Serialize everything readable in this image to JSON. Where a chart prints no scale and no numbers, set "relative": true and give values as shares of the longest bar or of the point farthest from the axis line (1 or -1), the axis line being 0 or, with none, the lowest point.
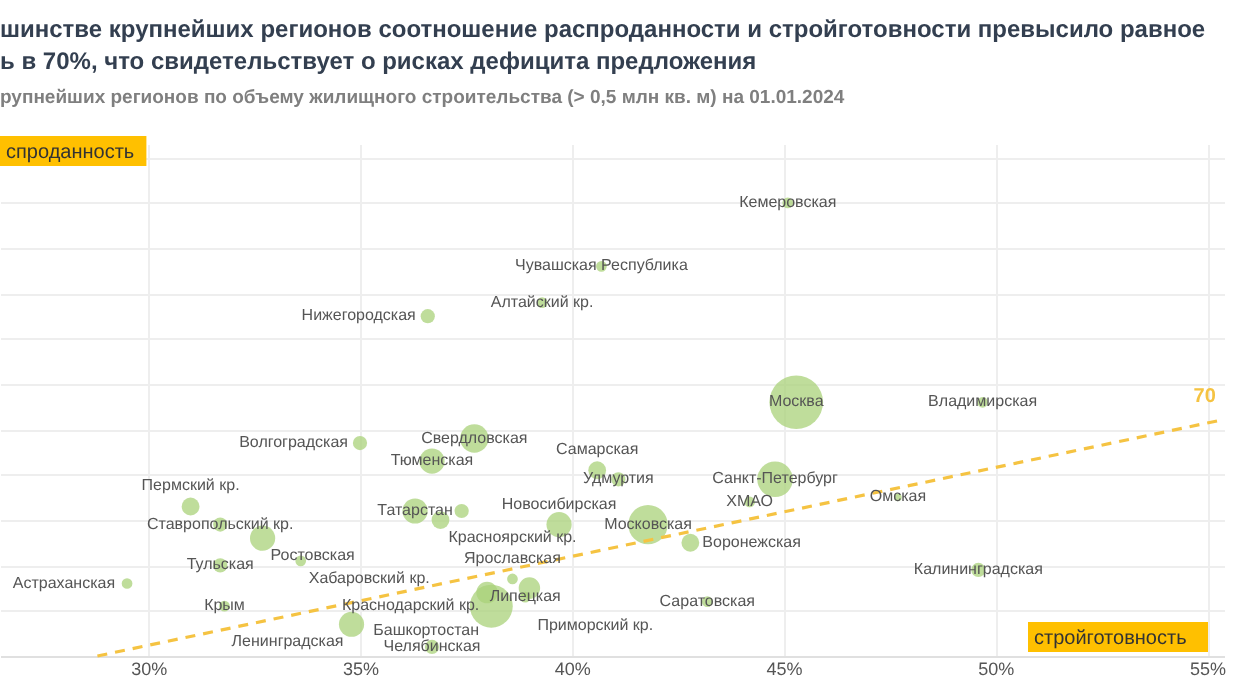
{
  "chart_data": {
    "type": "bubble",
    "title": "шинстве крупнейших регионов соотношение распроданности и стройготовности превысило равное\nь в 70%, что свидетельствует о рисках дефицита предложения",
    "subtitle": "рупнейших регионов по объему жилищного строительства (> 0,5 млн кв. м) на 01.01.2024",
    "xlabel": "стройготовность",
    "ylabel": "спроданность",
    "relative": true,
    "grid": true,
    "xlim": [
      26.5,
      55.4
    ],
    "xticks": [
      {
        "value": 30,
        "label": "30%"
      },
      {
        "value": 35,
        "label": "35%"
      },
      {
        "value": 40,
        "label": "40%"
      },
      {
        "value": 45,
        "label": "45%"
      },
      {
        "value": 50,
        "label": "50%"
      },
      {
        "value": 55,
        "label": "55%"
      }
    ],
    "series": [
      {
        "marker": "circle",
        "color": "#a9d17a",
        "x": [
          45.1,
          40.7,
          36.6,
          39.3,
          45.3,
          49.7,
          35.0,
          37.7,
          36.7,
          40.6,
          41.1,
          44.8,
          44.2,
          47.7,
          41.8,
          42.8,
          49.6,
          43.2,
          31.0,
          31.7,
          32.7,
          31.7,
          33.6,
          29.5,
          31.8,
          34.8,
          36.7,
          36.3,
          37.4,
          36.9,
          39.7,
          38.6,
          39.0,
          38.0,
          38.9,
          38.1
        ],
        "values": [
          1.0,
          0.86,
          0.75,
          0.78,
          0.56,
          0.56,
          0.47,
          0.48,
          0.43,
          0.41,
          0.39,
          0.39,
          0.34,
          0.35,
          0.29,
          0.25,
          0.19,
          0.12,
          0.33,
          0.29,
          0.26,
          0.2,
          0.21,
          0.16,
          0.11,
          0.07,
          0.02,
          0.32,
          0.32,
          0.3,
          0.29,
          0.17,
          0.15,
          0.14,
          0.13,
          0.11
        ],
        "sizes": [
          0.04,
          0.04,
          0.07,
          0.04,
          1,
          0.04,
          0.07,
          0.28,
          0.22,
          0.11,
          0.07,
          0.44,
          0.04,
          0.02,
          0.54,
          0.11,
          0.07,
          0.04,
          0.11,
          0.07,
          0.22,
          0.07,
          0.04,
          0.04,
          0.04,
          0.22,
          0.07,
          0.22,
          0.07,
          0.11,
          0.22,
          0.04,
          0.16,
          0.16,
          0.04,
          0.64
        ]
      },
      {
        "type": "line",
        "name": "70",
        "marker": "none",
        "color": "#f5c342",
        "line_style": "dashed",
        "x": [
          28.8,
          55.3
        ],
        "values": [
          0,
          0.52
        ]
      }
    ],
    "annotations": [
      {
        "text": "Кемеровская",
        "x": 45.1,
        "y": 1.0
      },
      {
        "text": "Чувашская Республика",
        "x": 40.7,
        "y": 0.86
      },
      {
        "text": "Нижегородская",
        "x": 36.6,
        "y": 0.75
      },
      {
        "text": "Алтайский кр.",
        "x": 39.3,
        "y": 0.78
      },
      {
        "text": "Москва",
        "x": 45.3,
        "y": 0.56
      },
      {
        "text": "Владимирская",
        "x": 49.7,
        "y": 0.56
      },
      {
        "text": "Волгоградская",
        "x": 35.0,
        "y": 0.47
      },
      {
        "text": "Свердловская",
        "x": 37.7,
        "y": 0.48
      },
      {
        "text": "Тюменская",
        "x": 36.7,
        "y": 0.43
      },
      {
        "text": "Самарская",
        "x": 40.6,
        "y": 0.41
      },
      {
        "text": "Удмуртия",
        "x": 41.1,
        "y": 0.39
      },
      {
        "text": "Санкт-Петербург",
        "x": 44.8,
        "y": 0.39
      },
      {
        "text": "ХМАО",
        "x": 44.2,
        "y": 0.34
      },
      {
        "text": "Омская",
        "x": 47.7,
        "y": 0.35
      },
      {
        "text": "Московская",
        "x": 41.8,
        "y": 0.29
      },
      {
        "text": "Воронежская",
        "x": 42.8,
        "y": 0.25
      },
      {
        "text": "Калининградская",
        "x": 49.6,
        "y": 0.19
      },
      {
        "text": "Саратовская",
        "x": 43.2,
        "y": 0.12
      },
      {
        "text": "Пермский кр.",
        "x": 31.0,
        "y": 0.33
      },
      {
        "text": "Ставропольский кр.",
        "x": 31.7,
        "y": 0.29
      },
      {
        "text": "Ростовская",
        "x": 32.7,
        "y": 0.26
      },
      {
        "text": "Тульская",
        "x": 31.7,
        "y": 0.2
      },
      {
        "text": "Хабаровский кр.",
        "x": 33.6,
        "y": 0.21
      },
      {
        "text": "Астраханская",
        "x": 29.5,
        "y": 0.16
      },
      {
        "text": "Крым",
        "x": 31.8,
        "y": 0.11
      },
      {
        "text": "Ленинградская",
        "x": 34.8,
        "y": 0.07
      },
      {
        "text": "Челябинская",
        "x": 36.7,
        "y": 0.02
      },
      {
        "text": "Татарстан",
        "x": 36.3,
        "y": 0.32
      },
      {
        "text": "Красноярский кр.",
        "x": 36.9,
        "y": 0.3
      },
      {
        "text": "Новосибирская",
        "x": 39.7,
        "y": 0.29
      },
      {
        "text": "Ярославская",
        "x": 38.6,
        "y": 0.17
      },
      {
        "text": "Приморский кр.",
        "x": 39.0,
        "y": 0.15
      },
      {
        "text": "Башкортостан",
        "x": 38.0,
        "y": 0.14
      },
      {
        "text": "Липецкая",
        "x": 38.9,
        "y": 0.13
      },
      {
        "text": "Краснодарский кр.",
        "x": 38.1,
        "y": 0.11
      }
    ]
  }
}
